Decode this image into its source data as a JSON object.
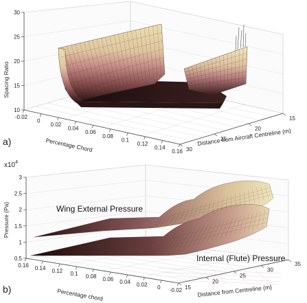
{
  "panel_a": {
    "label": "a)",
    "zlabel": "Spacing Ratio",
    "xlabel": "Percentage Chord",
    "ylabel": "Distance from Aircraft Centreline (m)"
  },
  "panel_b": {
    "label": "b)",
    "multiplier_base": "x10",
    "multiplier_exp": "4",
    "zlabel": "Pressure (Pa)",
    "xlabel": "Percentage chord",
    "ylabel": "Distance from Centreline (m)",
    "annotation_external": "Wing External Pressure",
    "annotation_internal": "Internal (Flute) Pressure"
  },
  "colors": {
    "surface_light": "#e8dcab",
    "surface_mid": "#c48b8b",
    "surface_dark": "#2a1414",
    "grid": "#d0d0d0",
    "axis": "#444444"
  },
  "chart_data": [
    {
      "type": "surface",
      "panel": "a",
      "zlabel": "Spacing Ratio",
      "xlabel": "Percentage Chord",
      "ylabel": "Distance from Aircraft Centreline (m)",
      "x_ticks": [
        "-0.02",
        "0",
        "0.02",
        "0.04",
        "0.06",
        "0.08",
        "0.1",
        "0.12",
        "0.14",
        "0.16"
      ],
      "y_ticks": [
        "15",
        "20",
        "25",
        "30"
      ],
      "z_ticks": [
        "10",
        "15",
        "20",
        "25",
        "30"
      ],
      "xlim": [
        -0.02,
        0.16
      ],
      "ylim": [
        15,
        35
      ],
      "zlim": [
        10,
        30
      ],
      "grid": true
    },
    {
      "type": "surface",
      "panel": "b",
      "zlabel": "Pressure (Pa)",
      "xlabel": "Percentage chord",
      "ylabel": "Distance from Centreline (m)",
      "x_ticks": [
        "0.16",
        "0.14",
        "0.12",
        "0.1",
        "0.08",
        "0.06",
        "0.04",
        "0.02",
        "0",
        "-0.02"
      ],
      "y_ticks": [
        "15",
        "20",
        "25",
        "30",
        "35"
      ],
      "z_ticks": [
        "0.5",
        "1",
        "1.5",
        "2",
        "2.5",
        "3"
      ],
      "xlim": [
        -0.02,
        0.16
      ],
      "ylim": [
        15,
        35
      ],
      "zlim": [
        0.5,
        3
      ],
      "z_scale_multiplier": "x10^4",
      "series": [
        {
          "name": "Wing External Pressure"
        },
        {
          "name": "Internal (Flute) Pressure"
        }
      ],
      "grid": true
    }
  ]
}
